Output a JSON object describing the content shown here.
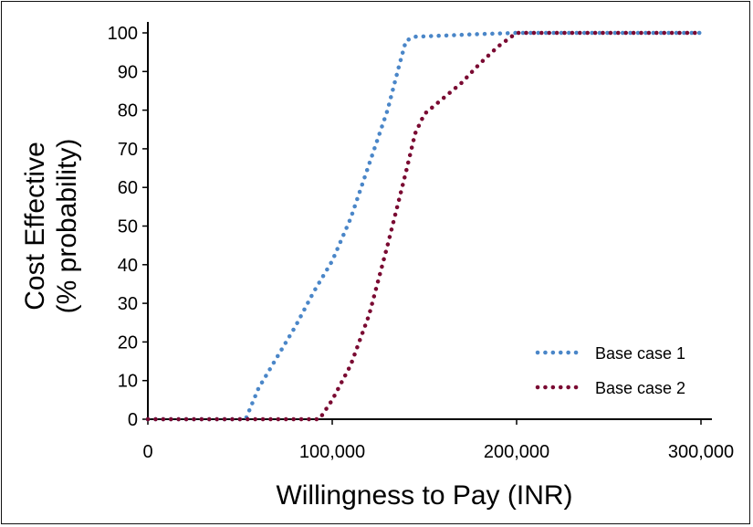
{
  "chart_data": {
    "type": "line",
    "title": "",
    "xlabel": "Willingness to Pay (INR)",
    "ylabel_line1": "Cost Effective",
    "ylabel_line2": "(% probability)",
    "xlim": [
      0,
      300000
    ],
    "ylim": [
      0,
      100
    ],
    "x_ticks": [
      0,
      100000,
      200000,
      300000
    ],
    "x_tick_labels": [
      "0",
      "100,000",
      "200,000",
      "300,000"
    ],
    "y_ticks": [
      0,
      10,
      20,
      30,
      40,
      50,
      60,
      70,
      80,
      90,
      100
    ],
    "y_tick_labels": [
      "0",
      "10",
      "20",
      "30",
      "40",
      "50",
      "60",
      "70",
      "80",
      "90",
      "100"
    ],
    "grid": false,
    "legend_position": "bottom-right",
    "line_style": "dotted",
    "series": [
      {
        "name": "Base case 1",
        "color": "#4a86c8",
        "points": [
          [
            0,
            0
          ],
          [
            53000,
            0
          ],
          [
            60000,
            8
          ],
          [
            70000,
            16
          ],
          [
            80000,
            24
          ],
          [
            90000,
            33
          ],
          [
            100000,
            41
          ],
          [
            110000,
            52
          ],
          [
            120000,
            66
          ],
          [
            130000,
            80
          ],
          [
            136000,
            91
          ],
          [
            140000,
            98
          ],
          [
            145000,
            99
          ],
          [
            160000,
            99.3
          ],
          [
            180000,
            99.7
          ],
          [
            200000,
            100
          ],
          [
            300000,
            100
          ]
        ]
      },
      {
        "name": "Base case 2",
        "color": "#7a0a32",
        "points": [
          [
            0,
            0
          ],
          [
            93000,
            0
          ],
          [
            100000,
            5
          ],
          [
            110000,
            14
          ],
          [
            120000,
            27
          ],
          [
            130000,
            45
          ],
          [
            140000,
            64
          ],
          [
            145000,
            74
          ],
          [
            150000,
            79
          ],
          [
            160000,
            83
          ],
          [
            170000,
            87
          ],
          [
            180000,
            92
          ],
          [
            190000,
            96.5
          ],
          [
            200000,
            100
          ],
          [
            300000,
            100
          ]
        ]
      }
    ]
  }
}
